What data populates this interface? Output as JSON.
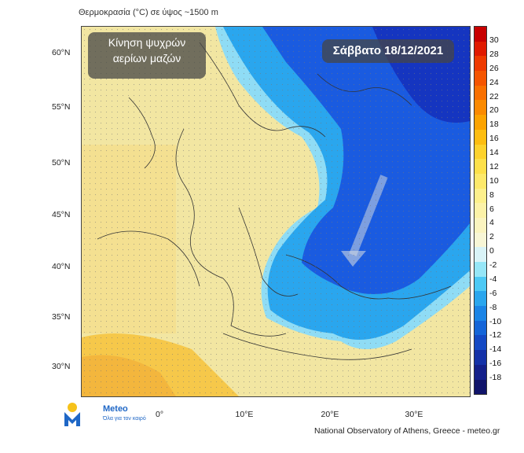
{
  "header": {
    "title": "Θερμοκρασία (°C) σε ύψος ~1500 m"
  },
  "map": {
    "annotation_cold": [
      "Κίνηση ψυχρών",
      "αερίων μαζών"
    ],
    "date_label": "Σάββατο 18/12/2021",
    "lat_labels": [
      "60°N",
      "55°N",
      "50°N",
      "45°N",
      "40°N",
      "35°N",
      "30°N"
    ],
    "lon_labels": [
      "0°",
      "10°E",
      "20°E",
      "30°E"
    ]
  },
  "colorbar": {
    "labels": [
      "30",
      "28",
      "26",
      "24",
      "22",
      "20",
      "18",
      "16",
      "14",
      "12",
      "10",
      "8",
      "6",
      "4",
      "2",
      "0",
      "-2",
      "-4",
      "-6",
      "-8",
      "-10",
      "-12",
      "-14",
      "-16",
      "-18"
    ],
    "colors": [
      "#c80000",
      "#e01a00",
      "#ee3a00",
      "#f55500",
      "#f97000",
      "#fb8a00",
      "#fca300",
      "#fdbd10",
      "#fdd22c",
      "#fde04a",
      "#fde96a",
      "#fdf08c",
      "#fcf2a8",
      "#fbf4c0",
      "#f8f6d6",
      "#d9f3f7",
      "#96e6f7",
      "#4dc9f5",
      "#2aa6ee",
      "#1b84e6",
      "#1565d8",
      "#1449c4",
      "#1532a8",
      "#14208a",
      "#10146a"
    ]
  },
  "footer": {
    "credit": "National Observatory of Athens, Greece - meteo.gr",
    "logo_name": "Meteo",
    "logo_tagline": "Όλα για τον καιρό"
  },
  "colors": {
    "cold_deep": "#1a5be0",
    "cold_mid": "#2aa6ee",
    "cold_light": "#8fdcf5",
    "warm": "#f3e7a6",
    "warmer": "#f6cf55"
  }
}
